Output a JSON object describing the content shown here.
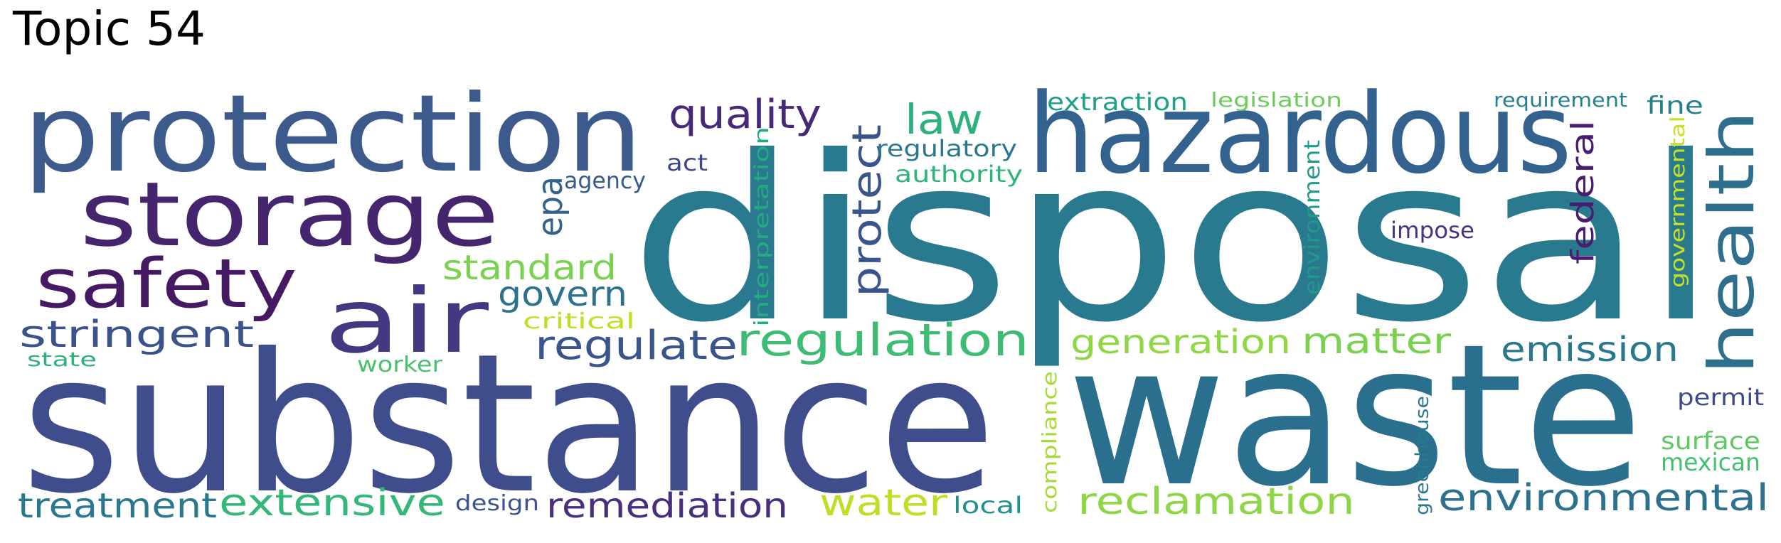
{
  "title": "Topic 54",
  "words": [
    {
      "text": "disposal",
      "color": "#2a7a8f"
    },
    {
      "text": "substance",
      "color": "#404d8c"
    },
    {
      "text": "waste",
      "color": "#2b6f8e"
    },
    {
      "text": "protection",
      "color": "#3d5a8d"
    },
    {
      "text": "hazardous",
      "color": "#33628e"
    },
    {
      "text": "storage",
      "color": "#46256f"
    },
    {
      "text": "air",
      "color": "#453781"
    },
    {
      "text": "safety",
      "color": "#461a63"
    },
    {
      "text": "health",
      "color": "#2f6f8e"
    },
    {
      "text": "regulation",
      "color": "#3fbc74"
    },
    {
      "text": "quality",
      "color": "#482878"
    },
    {
      "text": "law",
      "color": "#2db27d"
    },
    {
      "text": "protect",
      "color": "#3a548c"
    },
    {
      "text": "regulate",
      "color": "#39558c"
    },
    {
      "text": "stringent",
      "color": "#3b528b"
    },
    {
      "text": "standard",
      "color": "#7ad151"
    },
    {
      "text": "govern",
      "color": "#2c728e"
    },
    {
      "text": "epa",
      "color": "#33638d"
    },
    {
      "text": "federal",
      "color": "#481d6f"
    },
    {
      "text": "generation",
      "color": "#8fd744"
    },
    {
      "text": "matter",
      "color": "#7ad151"
    },
    {
      "text": "emission",
      "color": "#2a788e"
    },
    {
      "text": "environmental",
      "color": "#2d718e"
    },
    {
      "text": "reclamation",
      "color": "#8ed645"
    },
    {
      "text": "remediation",
      "color": "#472f7d"
    },
    {
      "text": "water",
      "color": "#bddf26"
    },
    {
      "text": "extensive",
      "color": "#35b779"
    },
    {
      "text": "treatment",
      "color": "#2a788e"
    },
    {
      "text": "agency",
      "color": "#365c8d"
    },
    {
      "text": "act",
      "color": "#3e4989"
    },
    {
      "text": "interpretation",
      "color": "#25ab82"
    },
    {
      "text": "regulatory",
      "color": "#2a788e"
    },
    {
      "text": "authority",
      "color": "#2fb47c"
    },
    {
      "text": "extraction",
      "color": "#1fa088"
    },
    {
      "text": "legislation",
      "color": "#6ccd5a"
    },
    {
      "text": "requirement",
      "color": "#26828e"
    },
    {
      "text": "fine",
      "color": "#277f8e"
    },
    {
      "text": "environment",
      "color": "#1f9a8a"
    },
    {
      "text": "impose",
      "color": "#46327e"
    },
    {
      "text": "governmental",
      "color": "#c8e020"
    },
    {
      "text": "critical",
      "color": "#bddf26"
    },
    {
      "text": "worker",
      "color": "#4ac16d"
    },
    {
      "text": "state",
      "color": "#2db27d"
    },
    {
      "text": "compliance",
      "color": "#a5db36"
    },
    {
      "text": "permit",
      "color": "#3e4a89"
    },
    {
      "text": "surface",
      "color": "#5ec962"
    },
    {
      "text": "mexican",
      "color": "#46c06f"
    },
    {
      "text": "greenhouse",
      "color": "#2a788e"
    },
    {
      "text": "design",
      "color": "#3b528b"
    },
    {
      "text": "local",
      "color": "#21918c"
    }
  ]
}
